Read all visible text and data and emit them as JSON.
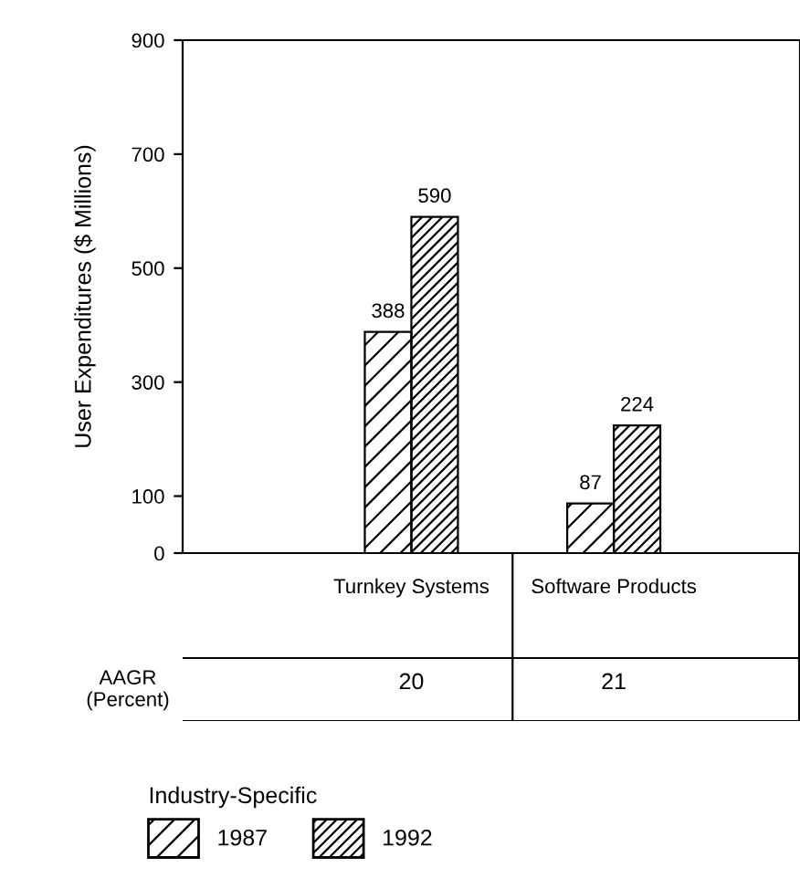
{
  "chart_data": {
    "type": "bar",
    "ylabel": "User Expenditures ($ Millions)",
    "categories": [
      "Turnkey Systems",
      "Software Products"
    ],
    "series": [
      {
        "name": "1987",
        "color": "#000000",
        "values": [
          388,
          87
        ]
      },
      {
        "name": "1992",
        "color": "#000000",
        "values": [
          590,
          224
        ]
      }
    ],
    "ylim": [
      0,
      900
    ],
    "yticks": [
      0,
      100,
      300,
      500,
      700,
      900
    ],
    "data_labels": true,
    "legend": "bottom left",
    "legend_title": "Industry-Specific",
    "annotations": [
      "AAGR\n(Percent)",
      "20",
      "21"
    ],
    "grid": false
  }
}
